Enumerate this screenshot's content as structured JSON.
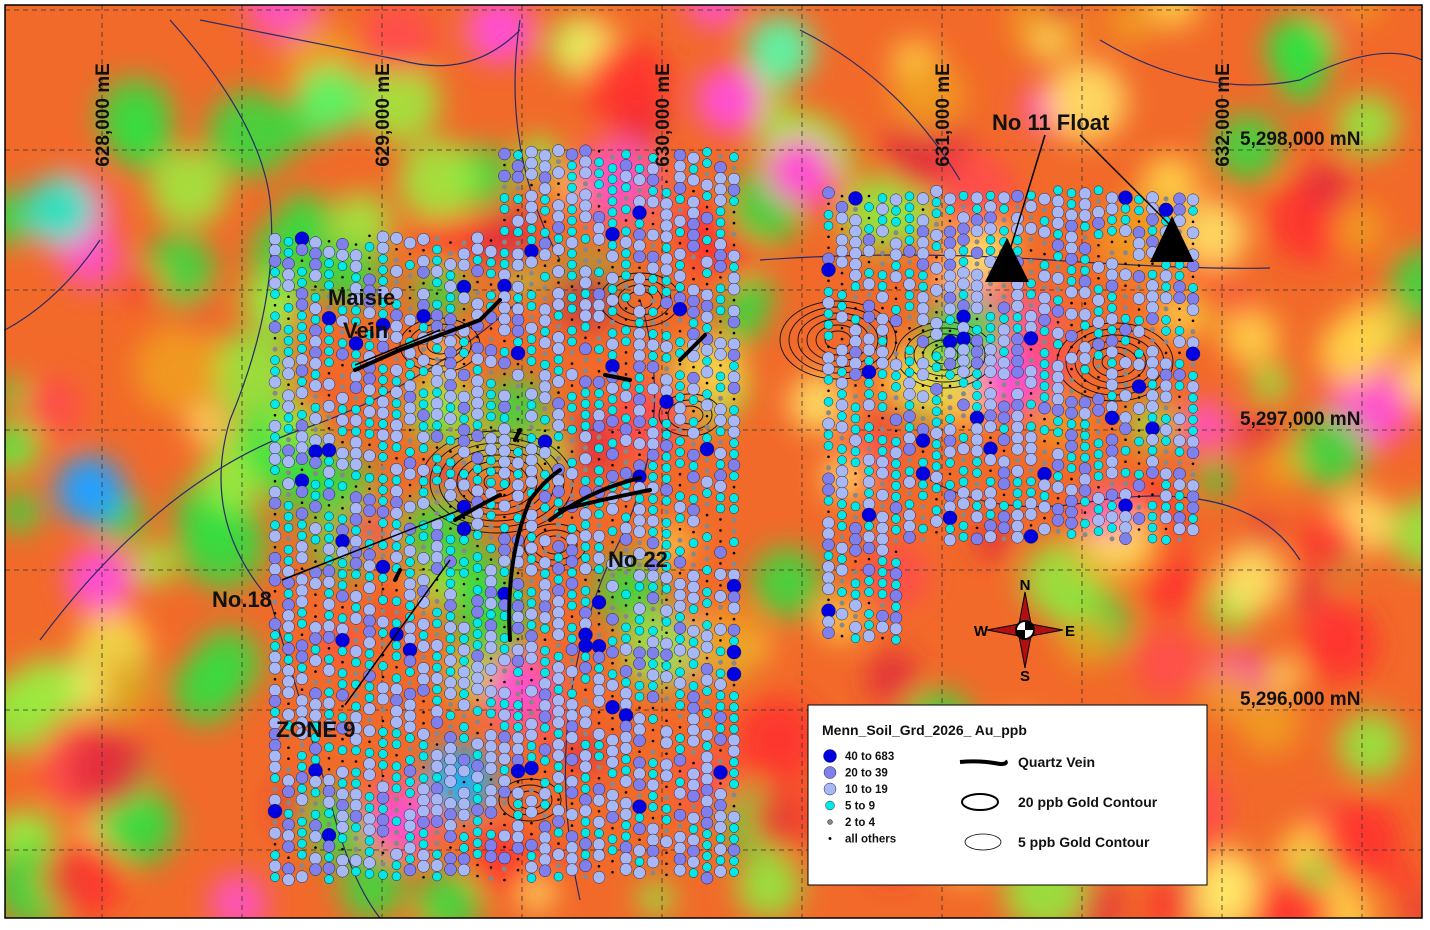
{
  "grid": {
    "eastings": [
      "628,000 mE",
      "629,000 mE",
      "630,000 mE",
      "631,000 mE",
      "632,000 mE"
    ],
    "northings": [
      "5,298,000 mN",
      "5,297,000 mN",
      "5,296,000 mN"
    ]
  },
  "annotations": {
    "maisie": [
      "Maisie",
      "Vein"
    ],
    "no18": "No.18",
    "zone9": "ZONE 9",
    "no22": "No 22",
    "no11": "No 11 Float"
  },
  "compass": {
    "n": "N",
    "s": "S",
    "e": "E",
    "w": "W"
  },
  "legend": {
    "title": "Menn_Soil_Grd_2026_ Au_ppb",
    "classes": [
      "40 to 683",
      "20 to  39",
      "10 to  19",
      "5 to  9",
      "2 to  4",
      "all others"
    ],
    "symbols": [
      "Quartz Vein",
      "20 ppb Gold Contour",
      "5 ppb Gold Contour"
    ]
  }
}
